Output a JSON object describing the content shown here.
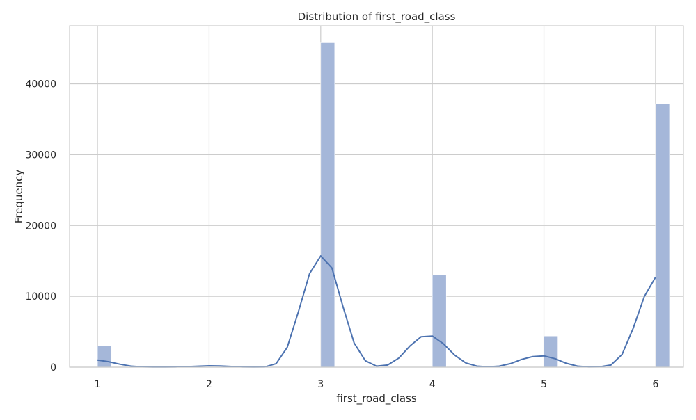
{
  "chart_data": {
    "type": "bar",
    "title": "Distribution of first_road_class",
    "xlabel": "first_road_class",
    "ylabel": "Frequency",
    "xlim": [
      0.75,
      6.25
    ],
    "ylim": [
      0,
      48200
    ],
    "xticks": [
      1,
      2,
      3,
      4,
      5,
      6
    ],
    "yticks": [
      0,
      10000,
      20000,
      30000,
      40000
    ],
    "grid": true,
    "bin_width": 0.125,
    "bars": [
      {
        "x": 1,
        "value": 3000
      },
      {
        "x": 3,
        "value": 45800
      },
      {
        "x": 4,
        "value": 13000
      },
      {
        "x": 5,
        "value": 4400
      },
      {
        "x": 6,
        "value": 37200
      }
    ],
    "kde": {
      "x": [
        1.0,
        1.1,
        1.2,
        1.3,
        1.4,
        1.5,
        1.6,
        1.7,
        1.8,
        1.9,
        2.0,
        2.1,
        2.2,
        2.3,
        2.4,
        2.5,
        2.6,
        2.7,
        2.8,
        2.9,
        3.0,
        3.1,
        3.2,
        3.3,
        3.4,
        3.5,
        3.6,
        3.7,
        3.8,
        3.9,
        4.0,
        4.1,
        4.2,
        4.3,
        4.4,
        4.5,
        4.6,
        4.7,
        4.8,
        4.9,
        5.0,
        5.1,
        5.2,
        5.3,
        5.4,
        5.5,
        5.6,
        5.7,
        5.8,
        5.9,
        6.0
      ],
      "y": [
        1000,
        780,
        420,
        150,
        50,
        20,
        20,
        40,
        80,
        140,
        200,
        170,
        100,
        40,
        20,
        40,
        500,
        2800,
        7800,
        13200,
        15700,
        14000,
        8500,
        3400,
        900,
        150,
        300,
        1300,
        3000,
        4300,
        4400,
        3300,
        1700,
        600,
        150,
        50,
        150,
        500,
        1100,
        1500,
        1600,
        1200,
        550,
        150,
        40,
        50,
        300,
        1800,
        5500,
        10000,
        12700
      ]
    },
    "bar_color": "#a5b7d9",
    "line_color": "#4c72b0",
    "grid_color": "#cccccc"
  }
}
